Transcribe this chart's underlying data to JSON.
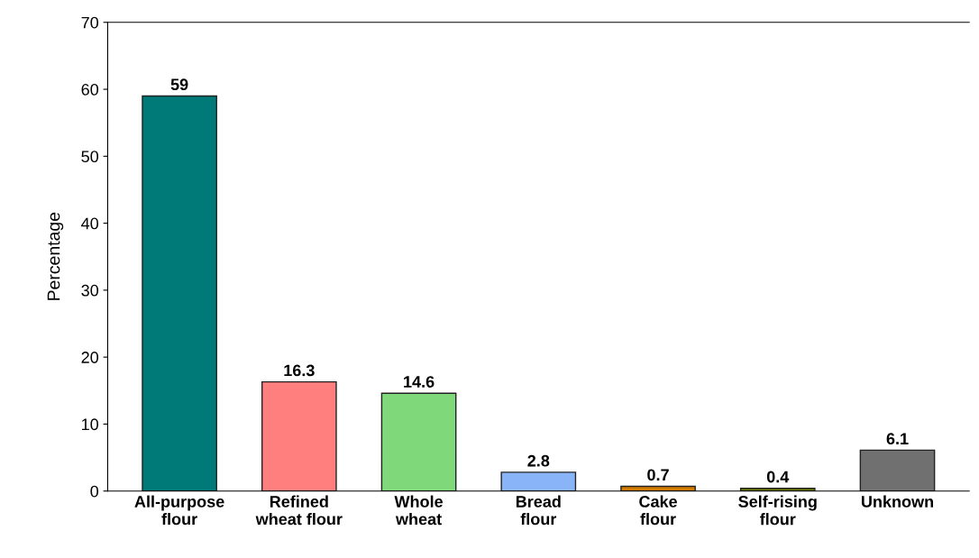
{
  "chart_data": {
    "type": "bar",
    "ylabel": "Percentage",
    "categories": [
      "All-purpose\nflour",
      "Refined\nwheat flour",
      "Whole\nwheat",
      "Bread\nflour",
      "Cake\nflour",
      "Self-rising\nflour",
      "Unknown"
    ],
    "values": [
      59,
      16.3,
      14.6,
      2.8,
      0.7,
      0.4,
      6.1
    ],
    "colors": [
      "#007a78",
      "#ff7f7f",
      "#7fd87a",
      "#8ab4f8",
      "#d27a00",
      "#6b7a00",
      "#707070"
    ],
    "ylim": [
      0,
      70
    ],
    "yticks": [
      0,
      10,
      20,
      30,
      40,
      50,
      60,
      70
    ],
    "data_labels": true,
    "grid": false,
    "legend": false
  }
}
